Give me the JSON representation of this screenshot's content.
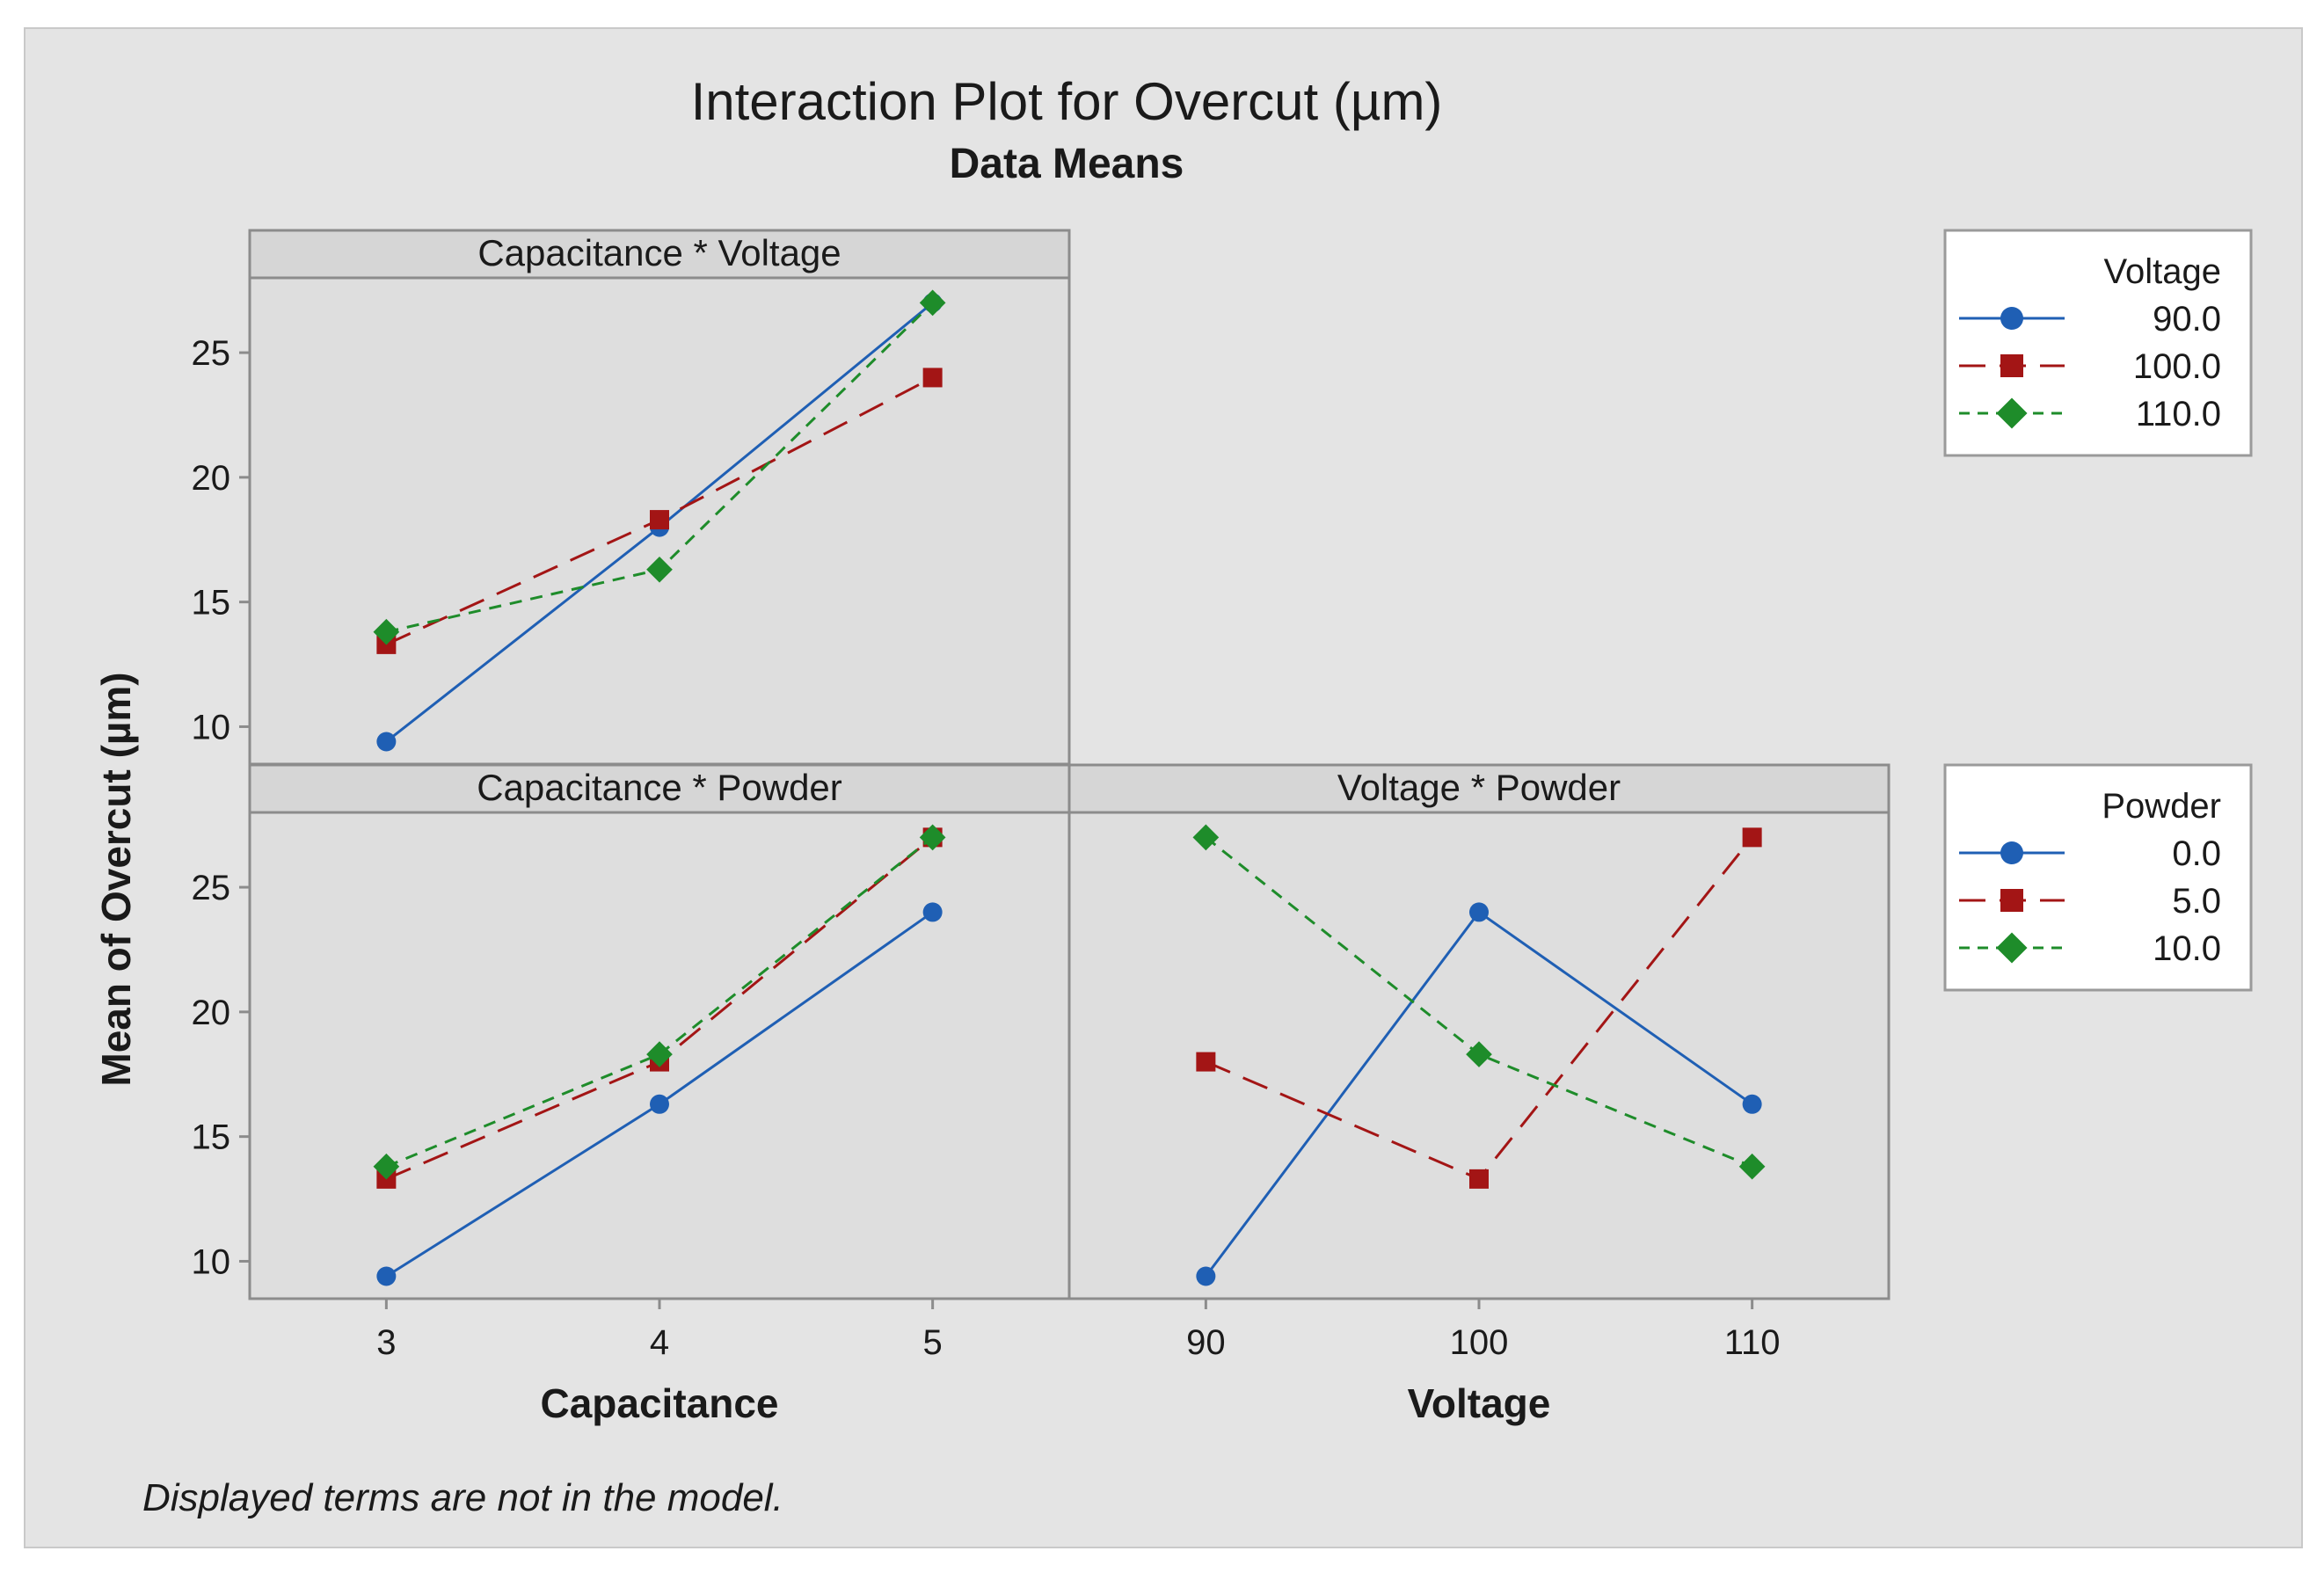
{
  "colors": {
    "background": "#e4e4e4",
    "panel_bg": "#dedede",
    "strip_bg": "#d6d6d6",
    "frame": "#8c8c8c",
    "text": "#1a1a1a",
    "series": [
      "#1f5fb4",
      "#a31515",
      "#1e8c2a"
    ]
  },
  "chart_data": {
    "type": "line",
    "title": "Interaction Plot for Overcut (µm)",
    "subtitle": "Data Means",
    "ylabel": "Mean of Overcut (µm)",
    "footnote": "Displayed terms are not in the model.",
    "ylim": [
      8.5,
      28
    ],
    "yticks": [
      10,
      15,
      20,
      25
    ],
    "legends": [
      {
        "title": "Voltage",
        "entries": [
          "90.0",
          "100.0",
          "110.0"
        ],
        "markers": [
          "circle",
          "square",
          "diamond"
        ]
      },
      {
        "title": "Powder",
        "entries": [
          "0.0",
          "5.0",
          "10.0"
        ],
        "markers": [
          "circle",
          "square",
          "diamond"
        ]
      }
    ],
    "panels": [
      {
        "id": "cap-volt",
        "title": "Capacitance * Voltage",
        "x": [
          3,
          4,
          5
        ],
        "xlabel": "Capacitance",
        "legend": "Voltage",
        "series": [
          {
            "name": "90.0",
            "values": [
              9.4,
              18.0,
              27.0
            ]
          },
          {
            "name": "100.0",
            "values": [
              13.3,
              18.3,
              24.0
            ]
          },
          {
            "name": "110.0",
            "values": [
              13.8,
              16.3,
              27.0
            ]
          }
        ]
      },
      {
        "id": "cap-powder",
        "title": "Capacitance * Powder",
        "x": [
          3,
          4,
          5
        ],
        "xlabel": "Capacitance",
        "legend": "Powder",
        "series": [
          {
            "name": "0.0",
            "values": [
              9.4,
              16.3,
              24.0
            ]
          },
          {
            "name": "5.0",
            "values": [
              13.3,
              18.0,
              27.0
            ]
          },
          {
            "name": "10.0",
            "values": [
              13.8,
              18.3,
              27.0
            ]
          }
        ]
      },
      {
        "id": "volt-powder",
        "title": "Voltage * Powder",
        "x": [
          90,
          100,
          110
        ],
        "xlabel": "Voltage",
        "legend": "Powder",
        "series": [
          {
            "name": "0.0",
            "values": [
              9.4,
              24.0,
              16.3
            ]
          },
          {
            "name": "5.0",
            "values": [
              18.0,
              13.3,
              27.0
            ]
          },
          {
            "name": "10.0",
            "values": [
              27.0,
              18.3,
              13.8
            ]
          }
        ]
      }
    ]
  }
}
